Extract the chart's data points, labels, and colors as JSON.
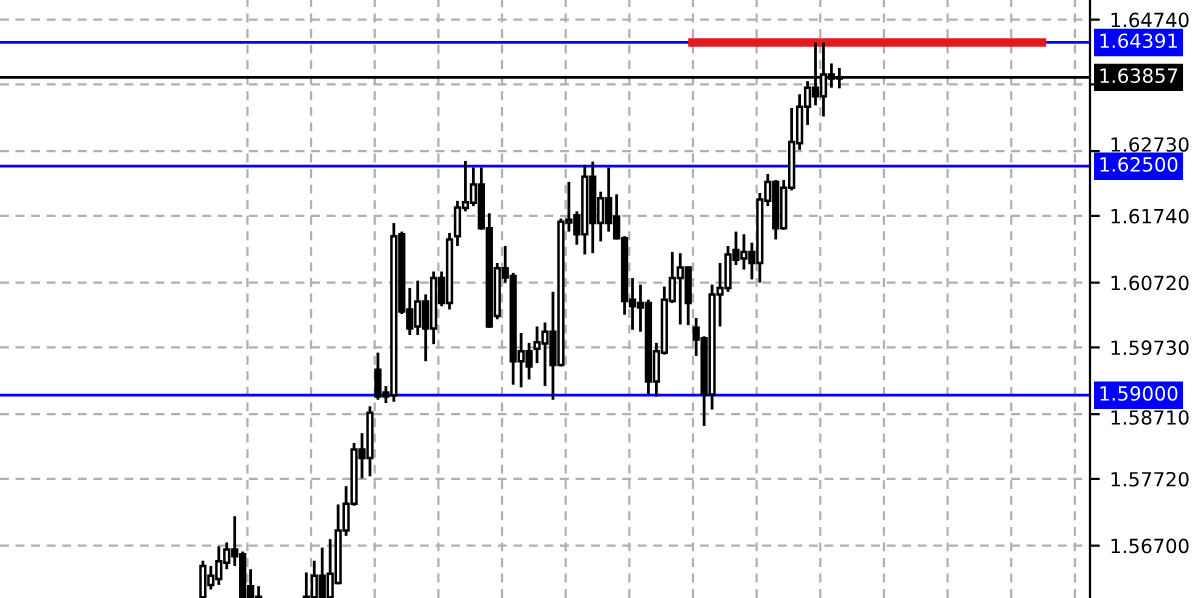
{
  "chart_data": {
    "type": "candlestick",
    "categories": [
      null,
      null,
      null,
      null,
      null,
      null,
      null,
      null,
      null,
      null,
      null,
      null,
      null,
      null,
      null,
      null,
      null,
      null,
      null,
      null,
      null,
      null,
      null,
      null,
      null,
      null,
      null,
      null,
      null,
      null,
      null,
      null,
      null,
      null,
      null,
      null,
      null,
      null,
      null,
      null,
      null,
      null,
      null,
      null,
      null,
      null,
      null,
      null,
      null,
      null,
      null,
      null,
      null,
      null,
      null,
      null,
      null,
      null,
      null,
      null,
      null,
      null,
      null,
      null,
      null,
      null,
      null,
      null,
      null,
      null,
      null,
      null,
      null,
      null,
      null,
      null,
      null,
      null,
      null,
      null,
      null,
      null,
      null,
      null,
      null,
      null,
      null,
      null,
      null,
      null,
      null,
      null,
      null,
      null,
      null,
      null,
      null,
      null,
      null,
      null,
      null,
      null,
      null,
      null,
      null,
      null,
      null,
      null,
      null,
      null,
      null,
      null,
      null,
      null,
      null,
      null,
      null,
      null,
      null,
      null,
      null,
      null,
      null,
      null,
      null,
      null,
      null,
      null,
      null,
      null,
      null,
      null,
      null,
      null,
      null,
      null,
      null
    ],
    "ohlc": [
      null,
      null,
      null,
      null,
      null,
      null,
      null,
      null,
      null,
      null,
      null,
      null,
      null,
      null,
      null,
      null,
      null,
      null,
      null,
      null,
      null,
      null,
      null,
      null,
      null,
      [
        1.5591,
        1.5647,
        1.5591,
        1.5639
      ],
      [
        1.561,
        1.5639,
        1.5603,
        1.5624
      ],
      [
        1.5619,
        1.5669,
        1.561,
        1.5646
      ],
      [
        1.5644,
        1.5675,
        1.5634,
        1.5664
      ],
      [
        1.5664,
        1.5715,
        1.5639,
        1.5654
      ],
      [
        1.5657,
        1.5661,
        1.5591,
        1.5591
      ],
      [
        1.5608,
        1.5634,
        1.5591,
        1.5591
      ],
      [
        1.5591,
        1.5608,
        1.5591,
        1.5591
      ],
      null,
      null,
      null,
      null,
      null,
      [
        1.5591,
        1.5629,
        1.5591,
        1.5591
      ],
      [
        1.5591,
        1.5647,
        1.5591,
        1.5624
      ],
      [
        1.5624,
        1.5667,
        1.5591,
        1.5591
      ],
      [
        1.5591,
        1.568,
        1.5591,
        1.5627
      ],
      [
        1.5613,
        1.5733,
        1.5611,
        1.5693
      ],
      [
        1.5693,
        1.5761,
        1.5685,
        1.5734
      ],
      [
        1.5734,
        1.5827,
        1.5731,
        1.5817
      ],
      [
        1.5817,
        1.5842,
        1.5773,
        1.5804
      ],
      [
        1.5804,
        1.5883,
        1.5776,
        1.5873
      ],
      [
        1.5939,
        1.5965,
        1.5893,
        1.5898
      ],
      [
        1.5904,
        1.5914,
        1.5888,
        1.5898
      ],
      [
        1.59,
        1.6163,
        1.589,
        1.6143
      ],
      [
        1.6146,
        1.615,
        1.6024,
        1.6028
      ],
      [
        1.6031,
        1.6064,
        1.5992,
        1.6002
      ],
      [
        1.6005,
        1.6075,
        1.5992,
        1.6043
      ],
      [
        1.6043,
        1.6054,
        1.5952,
        1.6002
      ],
      [
        1.6002,
        1.6089,
        1.5978,
        1.6079
      ],
      [
        1.6079,
        1.6089,
        1.6036,
        1.6041
      ],
      [
        1.6041,
        1.6148,
        1.6031,
        1.6138
      ],
      [
        1.6143,
        1.6197,
        1.6128,
        1.6187
      ],
      [
        1.6186,
        1.6258,
        1.6181,
        1.6195
      ],
      [
        1.6194,
        1.6248,
        1.6189,
        1.6222
      ],
      [
        1.6222,
        1.6248,
        1.6153,
        1.6155
      ],
      [
        1.6155,
        1.6178,
        1.6003,
        1.6005
      ],
      [
        1.6021,
        1.6102,
        1.6016,
        1.6094
      ],
      [
        1.6094,
        1.6128,
        1.6072,
        1.608
      ],
      [
        1.6082,
        1.6087,
        1.5916,
        1.5952
      ],
      [
        1.5952,
        1.5995,
        1.5912,
        1.5967
      ],
      [
        1.5967,
        1.598,
        1.5924,
        1.5944
      ],
      [
        1.5971,
        1.6005,
        1.5949,
        1.5981
      ],
      [
        1.5979,
        1.6011,
        1.5914,
        1.5997
      ],
      [
        1.5997,
        1.6058,
        1.5893,
        1.5946
      ],
      [
        1.5946,
        1.617,
        1.5944,
        1.6165
      ],
      [
        1.6164,
        1.6226,
        1.615,
        1.6168
      ],
      [
        1.6175,
        1.6181,
        1.613,
        1.6146
      ],
      [
        1.6146,
        1.6252,
        1.6115,
        1.6234
      ],
      [
        1.6234,
        1.6257,
        1.6117,
        1.6163
      ],
      [
        1.6163,
        1.6211,
        1.6135,
        1.6201
      ],
      [
        1.6201,
        1.6248,
        1.615,
        1.6163
      ],
      [
        1.6173,
        1.6207,
        1.6138,
        1.614
      ],
      [
        1.614,
        1.6143,
        1.6023,
        1.6044
      ],
      [
        1.6046,
        1.6079,
        1.6,
        1.6036
      ],
      [
        1.6041,
        1.6069,
        1.5997,
        1.6034
      ],
      [
        1.6041,
        1.6046,
        1.5901,
        1.5921
      ],
      [
        1.5921,
        1.598,
        1.5898,
        1.5967
      ],
      [
        1.5965,
        1.6066,
        1.5962,
        1.6046
      ],
      [
        1.6044,
        1.6119,
        1.6041,
        1.6079
      ],
      [
        1.6079,
        1.6117,
        1.6008,
        1.6095
      ],
      [
        1.6095,
        1.6097,
        1.6007,
        1.6041
      ],
      [
        1.6003,
        1.6018,
        1.596,
        1.5985
      ],
      [
        1.5987,
        1.599,
        1.5853,
        1.5901
      ],
      [
        1.5901,
        1.6069,
        1.5878,
        1.6054
      ],
      [
        1.6054,
        1.6102,
        1.6005,
        1.6064
      ],
      [
        1.6064,
        1.6128,
        1.6058,
        1.6115
      ],
      [
        1.6122,
        1.615,
        1.6099,
        1.6107
      ],
      [
        1.6109,
        1.6146,
        1.6092,
        1.6119
      ],
      [
        1.6119,
        1.6133,
        1.6077,
        1.6102
      ],
      [
        1.6102,
        1.6209,
        1.6072,
        1.6199
      ],
      [
        1.6197,
        1.6238,
        1.6189,
        1.6226
      ],
      [
        1.6226,
        1.6229,
        1.6138,
        1.6155
      ],
      [
        1.6155,
        1.6229,
        1.6153,
        1.6217
      ],
      [
        1.6217,
        1.6339,
        1.6213,
        1.6287
      ],
      [
        1.6285,
        1.636,
        1.6275,
        1.6341
      ],
      [
        1.6341,
        1.638,
        1.6313,
        1.637
      ],
      [
        1.637,
        1.6439,
        1.6343,
        1.6357
      ],
      [
        1.6357,
        1.6439,
        1.6326,
        1.639
      ],
      [
        1.639,
        1.6407,
        1.637,
        1.6384
      ],
      [
        1.6384,
        1.64,
        1.6369,
        1.6386
      ],
      null,
      null,
      null,
      null,
      null,
      null,
      null,
      null,
      null,
      null,
      null,
      null,
      null,
      null,
      null,
      null,
      null,
      null,
      null,
      null,
      null,
      null,
      null,
      null,
      null,
      null,
      null,
      null,
      null,
      null,
      null
    ],
    "series": [
      {
        "type": "line",
        "color": "#e41a1c",
        "values": [
          null,
          null,
          null,
          null,
          null,
          null,
          null,
          null,
          null,
          null,
          null,
          null,
          null,
          null,
          null,
          null,
          null,
          null,
          null,
          null,
          null,
          null,
          null,
          null,
          null,
          null,
          null,
          null,
          null,
          null,
          null,
          null,
          null,
          null,
          null,
          null,
          null,
          null,
          null,
          null,
          null,
          null,
          null,
          null,
          null,
          null,
          null,
          null,
          null,
          null,
          null,
          null,
          null,
          null,
          null,
          null,
          null,
          null,
          null,
          null,
          null,
          null,
          null,
          null,
          null,
          null,
          null,
          null,
          null,
          null,
          null,
          null,
          null,
          null,
          null,
          null,
          null,
          null,
          null,
          null,
          null,
          null,
          null,
          null,
          null,
          null,
          1.6439,
          1.6439,
          1.6439,
          1.6439,
          1.6439,
          1.6439,
          1.6439,
          1.6439,
          1.6439,
          1.6439,
          1.6439,
          1.6439,
          1.6439,
          1.6439,
          1.6439,
          1.6439,
          1.6439,
          1.6439,
          1.6439,
          1.6439,
          1.6439,
          1.6439,
          1.6439,
          1.6439,
          1.6439,
          1.6439,
          1.6439,
          1.6439,
          1.6439,
          1.6439,
          1.6439,
          1.6439,
          1.6439,
          1.6439,
          1.6439,
          1.6439,
          1.6439,
          1.6439,
          1.6439,
          1.6439,
          1.6439,
          1.6439,
          1.6439,
          1.6439,
          1.6439,
          1.6439,
          null,
          null,
          null,
          null,
          null
        ]
      }
    ],
    "ylim": [
      1.559,
      1.6504
    ],
    "yticks": [
      {
        "value": 1.6474,
        "label": "1.64740"
      },
      {
        "value": 1.6375,
        "label": null
      },
      {
        "value": 1.6273,
        "label": "1.62730"
      },
      {
        "value": 1.6174,
        "label": "1.61740"
      },
      {
        "value": 1.6072,
        "label": "1.60720"
      },
      {
        "value": 1.5973,
        "label": "1.59730"
      },
      {
        "value": 1.5871,
        "label": "1.58710"
      },
      {
        "value": 1.5772,
        "label": "1.57720"
      },
      {
        "value": 1.567,
        "label": "1.56700"
      }
    ],
    "ref_lines": [
      {
        "axis": "y",
        "value": 1.64391,
        "label": "1.64391",
        "color": "#0000ff"
      },
      {
        "axis": "y",
        "value": 1.63857,
        "label": "1.63857",
        "color": "#000000"
      },
      {
        "axis": "y",
        "value": 1.625,
        "label": "1.62500",
        "color": "#0000ff"
      },
      {
        "axis": "y",
        "value": 1.59,
        "label": "1.59000",
        "color": "#0000ff"
      }
    ],
    "grid": true,
    "tick_labels": "y"
  }
}
